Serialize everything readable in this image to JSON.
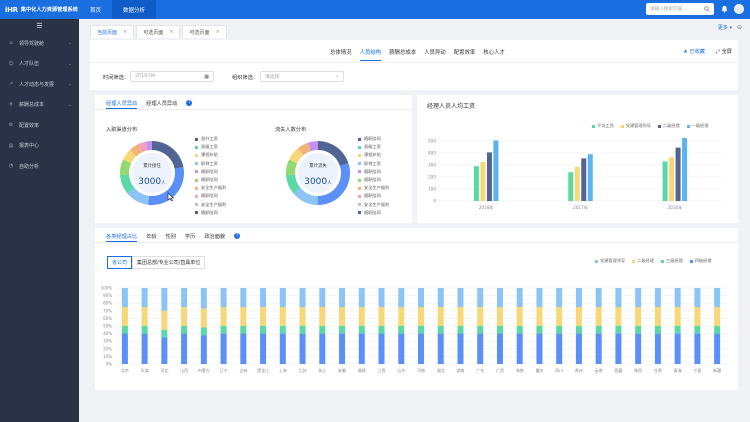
{
  "app": {
    "logo_mark": "iHR",
    "title": "集中化人力资源管理系统"
  },
  "topnav": [
    {
      "label": "首页",
      "active": false
    },
    {
      "label": "数据分析",
      "active": true
    }
  ],
  "search": {
    "placeholder": "请输入搜索内容"
  },
  "sidebar": {
    "toggle": "☰",
    "items": [
      {
        "label": "领导驾驶舱",
        "icon": "dashboard-icon"
      },
      {
        "label": "人才队伍",
        "icon": "people-icon"
      },
      {
        "label": "人才动态与发展",
        "icon": "growth-icon"
      },
      {
        "label": "薪酬总成本",
        "icon": "money-icon"
      },
      {
        "label": "配置效率",
        "icon": "config-icon"
      },
      {
        "label": "报表中心",
        "icon": "report-icon"
      },
      {
        "label": "自助分析",
        "icon": "analysis-icon"
      }
    ]
  },
  "tabs": [
    {
      "label": "当前页面",
      "active": true
    },
    {
      "label": "可选页面",
      "active": false
    },
    {
      "label": "可选页面",
      "active": false
    }
  ],
  "more_label": "更多",
  "subnav": [
    {
      "label": "总体情况",
      "active": false
    },
    {
      "label": "人员结构",
      "active": true
    },
    {
      "label": "薪酬总成本",
      "active": false
    },
    {
      "label": "人员异动",
      "active": false
    },
    {
      "label": "配置效率",
      "active": false
    },
    {
      "label": "核心人才",
      "active": false
    }
  ],
  "actions": {
    "collect": "已收藏",
    "fullscreen": "全屏"
  },
  "filters": {
    "time_label": "时间筛选：",
    "time_value": "2019-04",
    "org_label": "组织筛选：",
    "org_placeholder": "请选择"
  },
  "left_card": {
    "tabs": [
      {
        "label": "经理人员异动",
        "active": true
      },
      {
        "label": "经理人员异动",
        "active": false
      }
    ],
    "donut1": {
      "title": "入职渠道分布",
      "center_label": "累计接任",
      "center_value": "3000",
      "center_unit": "人"
    },
    "donut2": {
      "title": "流失人数分布",
      "center_label": "累计流失",
      "center_value": "3000",
      "center_unit": "人"
    },
    "legend1": [
      "晋升工资",
      "晋级工资",
      "课程补贴",
      "职称工资",
      "随职陪同",
      "随职陪同",
      "安全生产福利",
      "随职陪同",
      "安全生产福利",
      "随职陪同"
    ],
    "legend2": [
      "随职陪同",
      "晋级工资",
      "课程补贴",
      "职称工资",
      "随职陪同",
      "随职陪同",
      "安全生产福利",
      "随职陪同",
      "安全生产福利",
      "随职陪同"
    ]
  },
  "colors": {
    "primary": "#1a6fe0",
    "blue": "#5b8ff9",
    "navy": "#516595",
    "teal": "#5ad8a6",
    "yellow": "#f6d879",
    "lightblue": "#8cc4f5",
    "purple": "#c78ff0",
    "green": "#93d96f",
    "orange": "#f0b37a",
    "pink": "#f29ec7",
    "gray": "#b8c0cc"
  },
  "right_card": {
    "title": "经理人员人均工资"
  },
  "bottom_card": {
    "tabs": [
      {
        "label": "各类经理占比",
        "active": true
      },
      {
        "label": "年龄",
        "active": false
      },
      {
        "label": "性别",
        "active": false
      },
      {
        "label": "学历",
        "active": false
      },
      {
        "label": "政治面貌",
        "active": false
      }
    ],
    "buttons": [
      {
        "label": "省公司",
        "active": true
      },
      {
        "label": "集团总部/专业公司/直属单位",
        "active": false
      }
    ]
  },
  "chart_data": [
    {
      "type": "bar",
      "title": "经理人员人均工资",
      "categories": [
        "2018年",
        "2017年",
        "2016年"
      ],
      "series": [
        {
          "name": "平均工资",
          "color": "#5ad8a6",
          "values": [
            290,
            240,
            330
          ]
        },
        {
          "name": "党建管理领导",
          "color": "#f6d879",
          "values": [
            325,
            285,
            365
          ]
        },
        {
          "name": "二级经理",
          "color": "#516595",
          "values": [
            405,
            355,
            445
          ]
        },
        {
          "name": "一级经理",
          "color": "#5ab4f0",
          "values": [
            505,
            390,
            525
          ]
        }
      ],
      "ylim": [
        0,
        500
      ],
      "yticks": [
        0,
        100,
        200,
        300,
        400,
        500
      ]
    },
    {
      "type": "bar",
      "stacked": true,
      "title": "各类经理占比",
      "categories": [
        "北京",
        "天津",
        "河北",
        "山西",
        "内蒙古",
        "辽宁",
        "吉林",
        "黑龙江",
        "上海",
        "江苏",
        "浙江",
        "安徽",
        "福建",
        "江西",
        "山东",
        "河南",
        "湖北",
        "湖南",
        "广东",
        "广西",
        "海南",
        "重庆",
        "四川",
        "贵州",
        "云南",
        "西藏",
        "陕西",
        "甘肃",
        "青海",
        "宁夏",
        "新疆"
      ],
      "series": [
        {
          "name": "四级经理",
          "color": "#5b8ff9",
          "values": [
            40,
            40,
            35,
            40,
            38,
            40,
            40,
            40,
            40,
            40,
            40,
            40,
            40,
            40,
            40,
            40,
            40,
            40,
            40,
            40,
            40,
            40,
            40,
            40,
            40,
            40,
            40,
            40,
            40,
            40,
            40
          ]
        },
        {
          "name": "三级经理",
          "color": "#5ad8a6",
          "values": [
            10,
            10,
            10,
            10,
            10,
            10,
            10,
            10,
            10,
            10,
            10,
            10,
            10,
            10,
            10,
            10,
            10,
            10,
            10,
            10,
            10,
            10,
            10,
            10,
            10,
            10,
            10,
            10,
            10,
            10,
            10
          ]
        },
        {
          "name": "二级经理",
          "color": "#f6d879",
          "values": [
            25,
            25,
            25,
            25,
            25,
            25,
            25,
            25,
            25,
            25,
            25,
            25,
            25,
            25,
            25,
            25,
            25,
            25,
            25,
            25,
            25,
            25,
            25,
            25,
            25,
            25,
            25,
            25,
            25,
            25,
            25
          ]
        },
        {
          "name": "党建管理领导",
          "color": "#8cc4f5",
          "values": [
            25,
            25,
            30,
            25,
            27,
            25,
            25,
            25,
            25,
            25,
            25,
            25,
            25,
            25,
            25,
            25,
            25,
            25,
            25,
            25,
            25,
            25,
            25,
            25,
            25,
            25,
            25,
            25,
            25,
            25,
            25
          ]
        }
      ],
      "yticks": [
        "0%",
        "10%",
        "20%",
        "30%",
        "40%",
        "50%",
        "60%",
        "70%",
        "80%",
        "90%",
        "100%"
      ],
      "legend": [
        "党建管理领导",
        "二级经理",
        "三级经理",
        "四级经理"
      ]
    }
  ]
}
